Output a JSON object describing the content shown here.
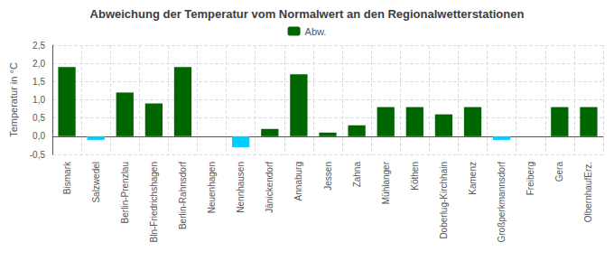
{
  "chart_data": {
    "type": "bar",
    "title": "Abweichung der Temperatur vom Normalwert an den Regionalwetterstationen",
    "ylabel": "Temperatur in °C",
    "categories": [
      "Bismark",
      "Salzwedel",
      "Berlin-Prenzlau",
      "Bln-Friedrichshagen",
      "Berlin-Rahnsdorf",
      "Neuenhagen",
      "Nennhausen",
      "Jänickendorf",
      "Annaburg",
      "Jessen",
      "Zahna",
      "Mühlanger",
      "Köthen",
      "Doberlug-Kirchhain",
      "Kamenz",
      "Großperkmannsdorf",
      "Freiberg",
      "Gera",
      "OlbernhaufErz."
    ],
    "series": [
      {
        "name": "Abw.",
        "color": "#006600",
        "values": [
          1.9,
          -0.1,
          1.2,
          0.9,
          1.9,
          0.0,
          -0.3,
          0.2,
          1.7,
          0.1,
          0.3,
          0.8,
          0.8,
          0.6,
          0.8,
          -0.1,
          0.0,
          0.8,
          0.8
        ]
      }
    ],
    "colors": [
      "#006600",
      "#00ccff",
      "#006600",
      "#006600",
      "#006600",
      "#006600",
      "#00ccff",
      "#006600",
      "#006600",
      "#006600",
      "#006600",
      "#006600",
      "#006600",
      "#006600",
      "#006600",
      "#00ccff",
      "#006600",
      "#006600",
      "#006600"
    ],
    "ylim": [
      -0.5,
      2.5
    ],
    "yticks": [
      {
        "value": -0.5,
        "label": "-0,5"
      },
      {
        "value": 0.0,
        "label": "0,0"
      },
      {
        "value": 0.5,
        "label": "0,5"
      },
      {
        "value": 1.0,
        "label": "1,0"
      },
      {
        "value": 1.5,
        "label": "1,5"
      },
      {
        "value": 2.0,
        "label": "2,0"
      },
      {
        "value": 2.5,
        "label": "2,5"
      }
    ],
    "grid": true,
    "legend": "top"
  }
}
